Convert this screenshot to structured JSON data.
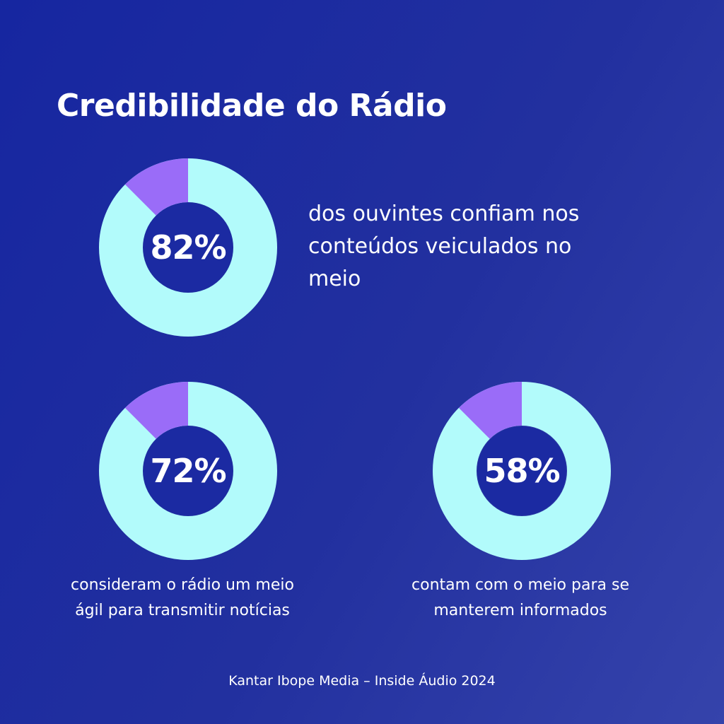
{
  "title": "Credibilidade do Rádio",
  "colors": {
    "ring_main": "#b2fbfb",
    "ring_accent": "#9a6cf8",
    "center": "#1b2aa2"
  },
  "chart_data": [
    {
      "type": "pie",
      "label": "82%",
      "value": 82,
      "description": "dos ouvintes confiam nos conteúdos veiculados no meio"
    },
    {
      "type": "pie",
      "label": "72%",
      "value": 72,
      "description": "consideram o rádio um meio ágil para transmitir notícias"
    },
    {
      "type": "pie",
      "label": "58%",
      "value": 58,
      "description": "contam com o meio para se manterem informados"
    }
  ],
  "source": "Kantar Ibope Media – Inside Áudio 2024"
}
